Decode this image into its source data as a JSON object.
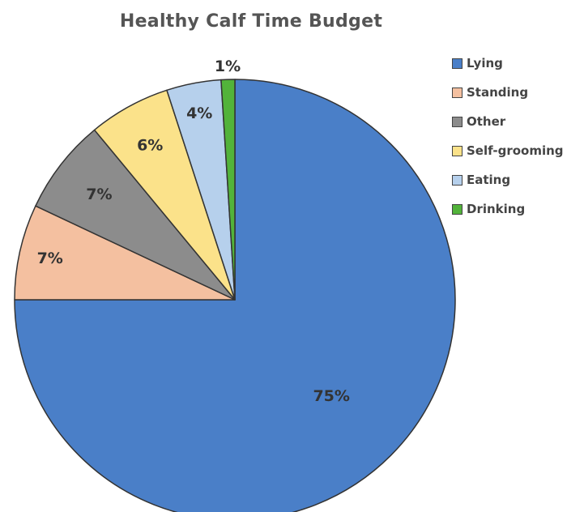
{
  "chart_data": {
    "type": "pie",
    "title": "Healthy Calf Time Budget",
    "legend_position": "right",
    "slices": [
      {
        "name": "Lying",
        "value": 75,
        "label": "75%",
        "color": "#4a7fc8"
      },
      {
        "name": "Standing",
        "value": 7,
        "label": "7%",
        "color": "#f4c0a0"
      },
      {
        "name": "Other",
        "value": 7,
        "label": "7%",
        "color": "#8c8c8c"
      },
      {
        "name": "Self-grooming",
        "value": 6,
        "label": "6%",
        "color": "#fbe28a"
      },
      {
        "name": "Eating",
        "value": 4,
        "label": "4%",
        "color": "#b6d0ec"
      },
      {
        "name": "Drinking",
        "value": 1,
        "label": "1%",
        "color": "#52b33a"
      }
    ]
  }
}
